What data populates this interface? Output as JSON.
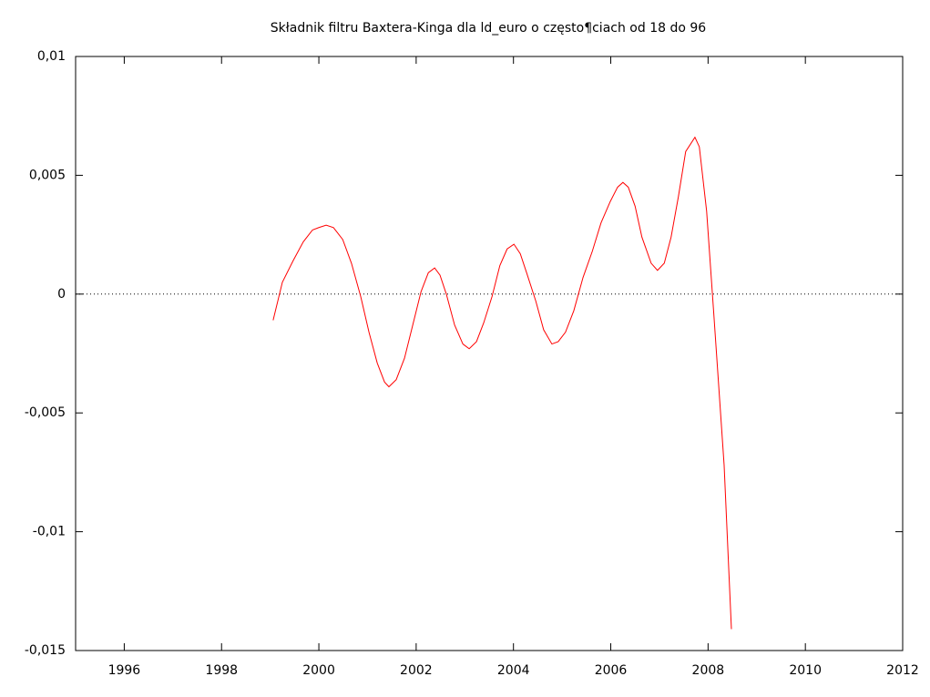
{
  "chart_data": {
    "type": "line",
    "title": "Składnik filtru Baxtera-Kinga dla ld_euro o często¶ciach od 18 do 96",
    "x": [
      1999.06,
      1999.25,
      1999.47,
      1999.68,
      1999.87,
      2000.0,
      2000.15,
      2000.3,
      2000.49,
      2000.67,
      2000.86,
      2001.03,
      2001.2,
      2001.35,
      2001.44,
      2001.59,
      2001.76,
      2001.93,
      2002.1,
      2002.25,
      2002.38,
      2002.49,
      2002.62,
      2002.79,
      2002.96,
      2003.09,
      2003.24,
      2003.39,
      2003.56,
      2003.72,
      2003.87,
      2004.01,
      2004.14,
      2004.27,
      2004.46,
      2004.62,
      2004.79,
      2004.92,
      2005.07,
      2005.24,
      2005.43,
      2005.62,
      2005.8,
      2005.99,
      2006.14,
      2006.25,
      2006.36,
      2006.5,
      2006.64,
      2006.83,
      2006.96,
      2007.1,
      2007.24,
      2007.39,
      2007.54,
      2007.73,
      2007.82,
      2007.97,
      2008.12,
      2008.33,
      2008.48
    ],
    "series": [
      {
        "name": "ld_euro",
        "color": "#ff0000",
        "values": [
          -0.0011,
          0.0005,
          0.0014,
          0.0022,
          0.0027,
          0.0028,
          0.0029,
          0.0028,
          0.0023,
          0.0013,
          -0.0001,
          -0.0016,
          -0.0029,
          -0.0037,
          -0.0039,
          -0.0036,
          -0.0027,
          -0.0013,
          0.0001,
          0.0009,
          0.0011,
          0.0008,
          0.0,
          -0.0013,
          -0.0021,
          -0.0023,
          -0.002,
          -0.0012,
          -0.0001,
          0.0012,
          0.0019,
          0.0021,
          0.0017,
          0.0009,
          -0.0003,
          -0.0015,
          -0.0021,
          -0.002,
          -0.0016,
          -0.0007,
          0.0007,
          0.0018,
          0.003,
          0.0039,
          0.0045,
          0.0047,
          0.0045,
          0.0037,
          0.0024,
          0.0013,
          0.001,
          0.0013,
          0.0024,
          0.0041,
          0.006,
          0.0066,
          0.0062,
          0.0035,
          -0.0009,
          -0.0072,
          -0.0141
        ]
      }
    ],
    "xlim": [
      1995,
      2012
    ],
    "xticks": [
      1996,
      1998,
      2000,
      2002,
      2004,
      2006,
      2008,
      2010,
      2012
    ],
    "ylim": [
      -0.015,
      0.01
    ],
    "yticks": [
      {
        "value": -0.015,
        "label": "-0,015"
      },
      {
        "value": -0.01,
        "label": "-0,01"
      },
      {
        "value": -0.005,
        "label": "-0,005"
      },
      0,
      {
        "value": 0.005,
        "label": "0,005"
      },
      {
        "value": 0.01,
        "label": "0,01"
      }
    ],
    "zero_line": true
  }
}
